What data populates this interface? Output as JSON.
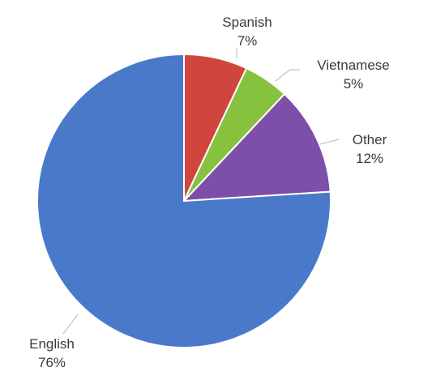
{
  "chart_data": {
    "type": "pie",
    "title": "",
    "slices": [
      {
        "label": "Spanish",
        "value": 7,
        "value_label": "7%",
        "color": "#d0463f"
      },
      {
        "label": "Vietnamese",
        "value": 5,
        "value_label": "5%",
        "color": "#86c23e"
      },
      {
        "label": "Other",
        "value": 12,
        "value_label": "12%",
        "color": "#7d4fa8"
      },
      {
        "label": "English",
        "value": 76,
        "value_label": "76%",
        "color": "#4a79c9"
      }
    ],
    "start": "12 o'clock",
    "direction": "clockwise",
    "legend": "none"
  }
}
